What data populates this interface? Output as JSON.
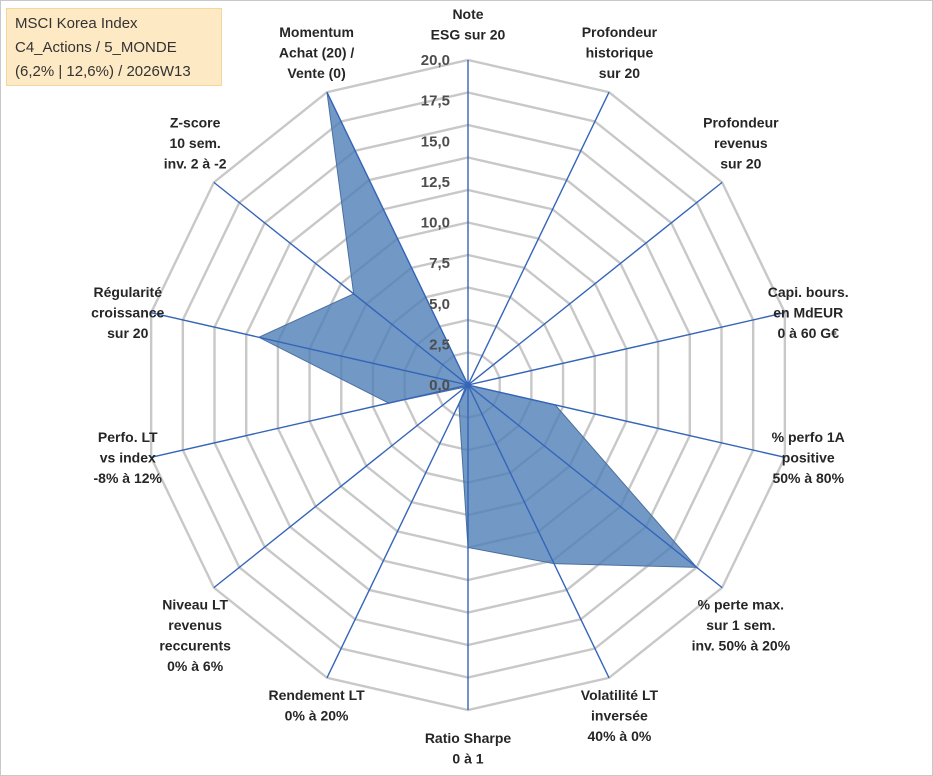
{
  "title": {
    "line1": "MSCI Korea Index",
    "line2": "C4_Actions / 5_MONDE",
    "line3": "(6,2% | 12,6%) / 2026W13"
  },
  "chart_data": {
    "type": "radar",
    "rmin": 0,
    "rmax": 20,
    "ticks": [
      "0,0",
      "2,5",
      "5,0",
      "7,5",
      "10,0",
      "12,5",
      "15,0",
      "17,5",
      "20,0"
    ],
    "grid_rings": 10,
    "axes": [
      {
        "label": [
          "Note",
          "ESG sur 20"
        ],
        "value": 0
      },
      {
        "label": [
          "Profondeur",
          "historique",
          "sur 20"
        ],
        "value": 0
      },
      {
        "label": [
          "Profondeur",
          "revenus",
          "sur 20"
        ],
        "value": 0
      },
      {
        "label": [
          "Capi. bours.",
          "en MdEUR",
          "0 à 60 G€"
        ],
        "value": 0
      },
      {
        "label": [
          "% perfo 1A",
          "positive",
          "50% à 80%"
        ],
        "value": 5.5
      },
      {
        "label": [
          "% perte max.",
          "sur 1 sem.",
          "inv. 50% à 20%"
        ],
        "value": 18
      },
      {
        "label": [
          "Volatilité LT",
          "inversée",
          "40% à 0%"
        ],
        "value": 12.2
      },
      {
        "label": [
          "Ratio Sharpe",
          "0 à 1"
        ],
        "value": 10
      },
      {
        "label": [
          "Rendement LT",
          "0% à 20%"
        ],
        "value": 1.3
      },
      {
        "label": [
          "Niveau LT",
          "revenus",
          "reccurents",
          "0% à 6%"
        ],
        "value": 0.2
      },
      {
        "label": [
          "Perfo. LT",
          "vs index",
          "-8% à 12%"
        ],
        "value": 5.0
      },
      {
        "label": [
          "Régularité",
          "croissance",
          "sur 20"
        ],
        "value": 13.2
      },
      {
        "label": [
          "Z-score",
          "10 sem.",
          "inv. 2 à -2"
        ],
        "value": 9.0
      },
      {
        "label": [
          "Momentum",
          "Achat (20) /",
          "Vente (0)"
        ],
        "value": 20
      }
    ],
    "series": [
      {
        "name": "MSCI Korea Index",
        "color": "#4f7fb8"
      }
    ]
  }
}
